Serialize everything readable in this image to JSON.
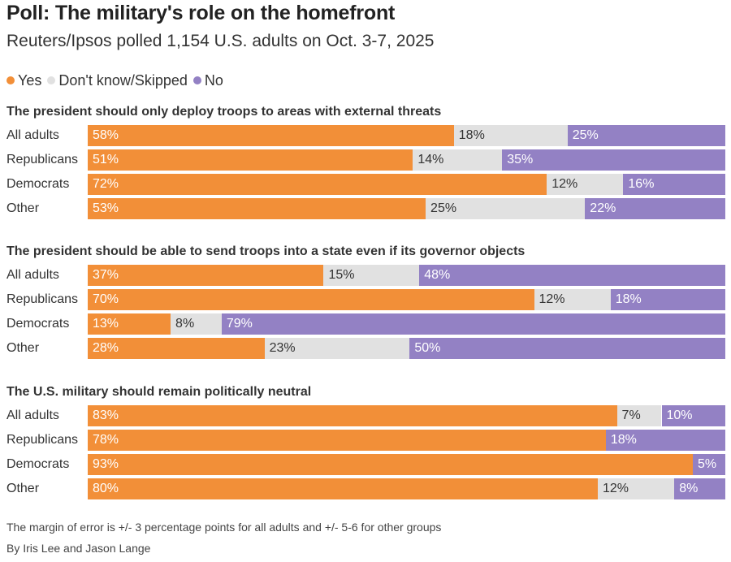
{
  "title": "Poll: The military's role on the homefront",
  "subtitle": "Reuters/Ipsos polled 1,154 U.S. adults on Oct. 3-7, 2025",
  "colors": {
    "yes": "#f28f38",
    "dont_know": "#e1e1e1",
    "no": "#9381c4"
  },
  "legend": [
    {
      "key": "yes",
      "label": "Yes"
    },
    {
      "key": "dont_know",
      "label": "Don't know/Skipped"
    },
    {
      "key": "no",
      "label": "No"
    }
  ],
  "footnote": "The margin of error is +/- 3 percentage points for all adults and +/- 5-6 for other groups",
  "byline": "By Iris Lee and Jason Lange",
  "chart_data": {
    "type": "bar",
    "stacked": true,
    "orientation": "horizontal",
    "series_order": [
      "yes",
      "dont_know",
      "no"
    ],
    "panels": [
      {
        "title": "The president should only deploy troops to areas with external threats",
        "rows": [
          {
            "label": "All adults",
            "yes": 58,
            "dont_know": 18,
            "no": 25
          },
          {
            "label": "Republicans",
            "yes": 51,
            "dont_know": 14,
            "no": 35
          },
          {
            "label": "Democrats",
            "yes": 72,
            "dont_know": 12,
            "no": 16
          },
          {
            "label": "Other",
            "yes": 53,
            "dont_know": 25,
            "no": 22
          }
        ]
      },
      {
        "title": "The president should be able to send troops into a state even if its governor objects",
        "rows": [
          {
            "label": "All adults",
            "yes": 37,
            "dont_know": 15,
            "no": 48
          },
          {
            "label": "Republicans",
            "yes": 70,
            "dont_know": 12,
            "no": 18
          },
          {
            "label": "Democrats",
            "yes": 13,
            "dont_know": 8,
            "no": 79
          },
          {
            "label": "Other",
            "yes": 28,
            "dont_know": 23,
            "no": 50
          }
        ]
      },
      {
        "title": "The U.S. military should remain politically neutral",
        "rows": [
          {
            "label": "All adults",
            "yes": 83,
            "dont_know": 7,
            "no": 10
          },
          {
            "label": "Republicans",
            "yes": 78,
            "dont_know": null,
            "no": 18
          },
          {
            "label": "Democrats",
            "yes": 93,
            "dont_know": null,
            "no": 5
          },
          {
            "label": "Other",
            "yes": 80,
            "dont_know": 12,
            "no": 8
          }
        ]
      }
    ]
  }
}
